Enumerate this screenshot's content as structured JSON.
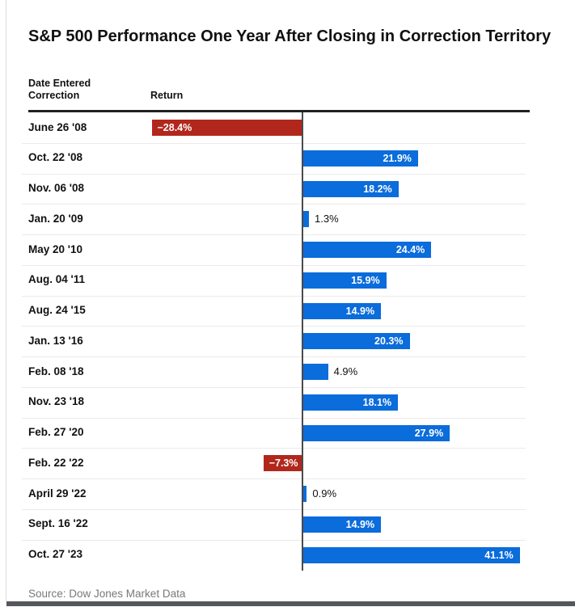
{
  "title": "S&P 500 Performance One Year After Closing in Correction Territory",
  "table_header": {
    "date_column": "Date Entered Correction",
    "return_column": "Return"
  },
  "source": "Source: Dow Jones Market Data",
  "chart_data": {
    "type": "bar",
    "orientation": "horizontal",
    "title": "S&P 500 Performance One Year After Closing in Correction Territory",
    "categories": [
      "June 26 '08",
      "Oct. 22 '08",
      "Nov. 06 '08",
      "Jan. 20 '09",
      "May 20 '10",
      "Aug. 04 '11",
      "Aug. 24 '15",
      "Jan. 13 '16",
      "Feb. 08 '18",
      "Nov. 23 '18",
      "Feb. 27 '20",
      "Feb. 22 '22",
      "April 29 '22",
      "Sept. 16 '22",
      "Oct. 27 '23"
    ],
    "values": [
      -28.4,
      21.9,
      18.2,
      1.3,
      24.4,
      15.9,
      14.9,
      20.3,
      4.9,
      18.1,
      27.9,
      -7.3,
      0.9,
      14.9,
      41.1
    ],
    "value_labels": [
      "−28.4%",
      "21.9%",
      "18.2%",
      "1.3%",
      "24.4%",
      "15.9%",
      "14.9%",
      "20.3%",
      "4.9%",
      "18.1%",
      "27.9%",
      "−7.3%",
      "0.9%",
      "14.9%",
      "41.1%"
    ],
    "value_unit": "%",
    "colors": {
      "positive_bar": "#0b6cdb",
      "negative_bar": "#b2271c",
      "inside_label_text": "#ffffff",
      "outside_label_text": "#111111",
      "zero_axis": "#4a4a4a"
    },
    "grid": false,
    "legend": false,
    "xlabel": "Return",
    "ylabel": "Date Entered Correction"
  }
}
